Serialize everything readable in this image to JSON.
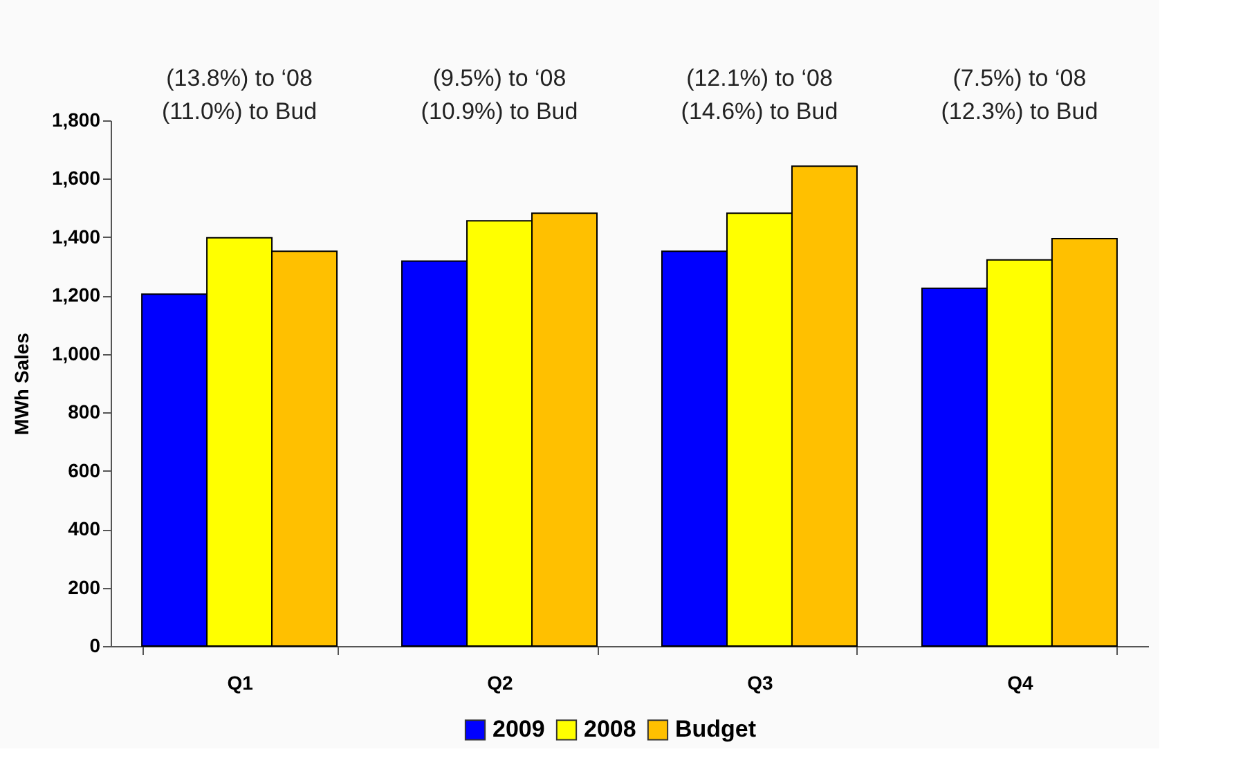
{
  "chart_data": {
    "type": "bar",
    "ylabel": "MWh Sales",
    "categories": [
      "Q1",
      "Q2",
      "Q3",
      "Q4"
    ],
    "series": [
      {
        "name": "2009",
        "color": "#0000ff",
        "values": [
          1205,
          1318,
          1352,
          1225
        ]
      },
      {
        "name": "2008",
        "color": "#ffff00",
        "values": [
          1398,
          1456,
          1482,
          1322
        ]
      },
      {
        "name": "Budget",
        "color": "#ffc000",
        "values": [
          1352,
          1482,
          1643,
          1395
        ]
      }
    ],
    "ylim": [
      0,
      1800
    ],
    "yticks": [
      {
        "value": 0,
        "label": "0"
      },
      {
        "value": 200,
        "label": "200"
      },
      {
        "value": 400,
        "label": "400"
      },
      {
        "value": 600,
        "label": "600"
      },
      {
        "value": 800,
        "label": "800"
      },
      {
        "value": 1000,
        "label": "1,000"
      },
      {
        "value": 1200,
        "label": "1,200"
      },
      {
        "value": 1400,
        "label": "1,400"
      },
      {
        "value": 1600,
        "label": "1,600"
      },
      {
        "value": 1800,
        "label": "1,800"
      }
    ],
    "grid": false,
    "legend": "bottom",
    "annotations": [
      "(13.8%) to ‘08",
      "(11.0%) to Bud",
      "(9.5%) to ‘08",
      "(10.9%) to Bud",
      "(12.1%) to ‘08",
      "(14.6%) to Bud",
      "(7.5%) to ‘08",
      "(12.3%) to Bud"
    ]
  }
}
